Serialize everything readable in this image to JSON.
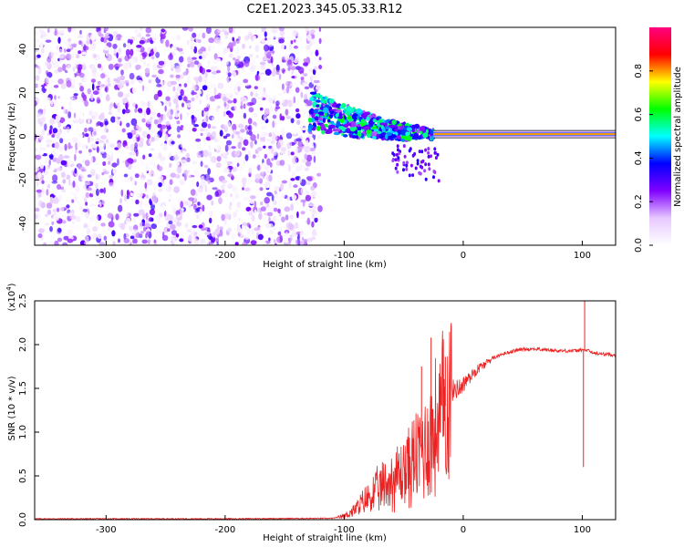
{
  "title": "C2E1.2023.345.05.33.R12",
  "chart_data": [
    {
      "type": "heatmap",
      "xlabel": "Height of straight line (km)",
      "ylabel": "Frequency (Hz)",
      "xlim": [
        -360,
        128
      ],
      "ylim": [
        -50,
        50
      ],
      "xticks": [
        -300,
        -200,
        -100,
        0,
        100
      ],
      "yticks": [
        -40,
        -20,
        0,
        20,
        40
      ],
      "colorbar": {
        "label": "Normalized spectral amplitude",
        "range": [
          0,
          1
        ],
        "ticks": [
          "0.0",
          "0.2",
          "0.4",
          "0.6",
          "0.8"
        ],
        "colors": [
          "#ffffff",
          "#e6c8ff",
          "#8000ff",
          "#0000ff",
          "#00ffff",
          "#00ff00",
          "#ffff00",
          "#ff0000",
          "#ff0080"
        ]
      },
      "features": {
        "scatter_region_x": [
          -360,
          -120
        ],
        "converging_band_x": [
          -130,
          -25
        ],
        "narrow_line_x": [
          -25,
          128
        ],
        "narrow_line_freq": 1
      }
    },
    {
      "type": "line",
      "xlabel": "Height of straight line (km)",
      "ylabel": "SNR (10 * v/v)",
      "y_multiplier": "(x10",
      "y_multiplier_exp": "4",
      "y_multiplier_close": ")",
      "xlim": [
        -360,
        128
      ],
      "ylim": [
        0,
        2.5
      ],
      "xticks": [
        -300,
        -200,
        -100,
        0,
        100
      ],
      "yticks": [
        "0.0",
        "0.5",
        "1.0",
        "1.5",
        "2.0",
        "2.5"
      ],
      "series_color": "#ee2222",
      "x": [
        -360,
        -300,
        -200,
        -110,
        -100,
        -90,
        -80,
        -70,
        -60,
        -50,
        -40,
        -30,
        -20,
        -15,
        -10,
        0,
        10,
        20,
        30,
        40,
        50,
        60,
        70,
        80,
        90,
        95,
        100,
        105,
        110,
        120,
        128
      ],
      "y": [
        0.01,
        0.01,
        0.01,
        0.015,
        0.04,
        0.12,
        0.25,
        0.35,
        0.45,
        0.55,
        0.7,
        0.9,
        1.1,
        1.3,
        1.45,
        1.55,
        1.7,
        1.8,
        1.88,
        1.92,
        1.95,
        1.95,
        1.94,
        1.93,
        1.93,
        1.93,
        1.94,
        1.93,
        1.9,
        1.89,
        1.88
      ],
      "spikes": [
        {
          "x": -35,
          "y": 1.75
        },
        {
          "x": -27,
          "y": 2.08
        },
        {
          "x": -15,
          "y": 1.86
        },
        {
          "x": 101,
          "y": 0.6
        },
        {
          "x": 102,
          "y": 2.5
        }
      ]
    }
  ]
}
